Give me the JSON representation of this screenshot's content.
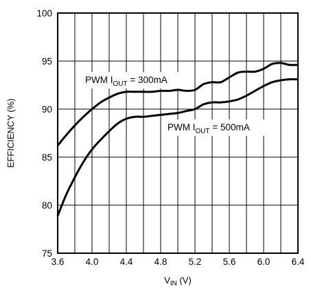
{
  "chart_data": {
    "type": "line",
    "title": "",
    "xlabel": {
      "main": "V",
      "sub": "IN",
      "unit": " (V)"
    },
    "ylabel": "EFFICIENCY (%)",
    "xlim": [
      3.6,
      6.4
    ],
    "ylim": [
      75,
      100
    ],
    "x_ticks": [
      3.6,
      4.0,
      4.4,
      4.8,
      5.2,
      5.6,
      6.0,
      6.4
    ],
    "x_tick_labels": [
      "3.6",
      "4.0",
      "4.4",
      "4.8",
      "5.2",
      "5.6",
      "6.0",
      "6.4"
    ],
    "y_ticks": [
      75,
      80,
      85,
      90,
      95,
      100
    ],
    "y_tick_labels": [
      "75",
      "80",
      "85",
      "90",
      "95",
      "100"
    ],
    "grid": true,
    "series": [
      {
        "name": "PWM IOUT = 300mA",
        "label": {
          "pre": "PWM I",
          "sub": "OUT",
          "post": " = 300mA"
        },
        "x": [
          3.6,
          3.7,
          3.8,
          3.9,
          4.0,
          4.1,
          4.2,
          4.3,
          4.4,
          4.5,
          4.6,
          4.7,
          4.8,
          4.9,
          5.0,
          5.1,
          5.2,
          5.3,
          5.4,
          5.5,
          5.6,
          5.7,
          5.8,
          5.9,
          6.0,
          6.1,
          6.2,
          6.3,
          6.4
        ],
        "values": [
          86.2,
          87.3,
          88.3,
          89.2,
          90.0,
          90.7,
          91.2,
          91.6,
          91.8,
          91.8,
          91.8,
          91.8,
          91.9,
          91.9,
          92.0,
          91.9,
          92.0,
          92.6,
          92.8,
          92.8,
          93.3,
          93.8,
          93.9,
          93.9,
          94.2,
          94.7,
          94.8,
          94.6,
          94.6
        ]
      },
      {
        "name": "PWM IOUT = 500mA",
        "label": {
          "pre": "PWM I",
          "sub": "OUT",
          "post": " = 500mA"
        },
        "x": [
          3.6,
          3.7,
          3.8,
          3.9,
          4.0,
          4.1,
          4.2,
          4.3,
          4.4,
          4.5,
          4.6,
          4.7,
          4.8,
          4.9,
          5.0,
          5.1,
          5.2,
          5.3,
          5.4,
          5.5,
          5.6,
          5.7,
          5.8,
          5.9,
          6.0,
          6.1,
          6.2,
          6.3,
          6.4
        ],
        "values": [
          78.9,
          81.1,
          82.9,
          84.5,
          85.8,
          86.8,
          87.7,
          88.5,
          89.0,
          89.2,
          89.2,
          89.3,
          89.4,
          89.5,
          89.6,
          89.8,
          90.0,
          90.5,
          90.7,
          90.7,
          90.8,
          91.0,
          91.4,
          91.9,
          92.4,
          92.8,
          93.0,
          93.1,
          93.1
        ]
      }
    ]
  }
}
